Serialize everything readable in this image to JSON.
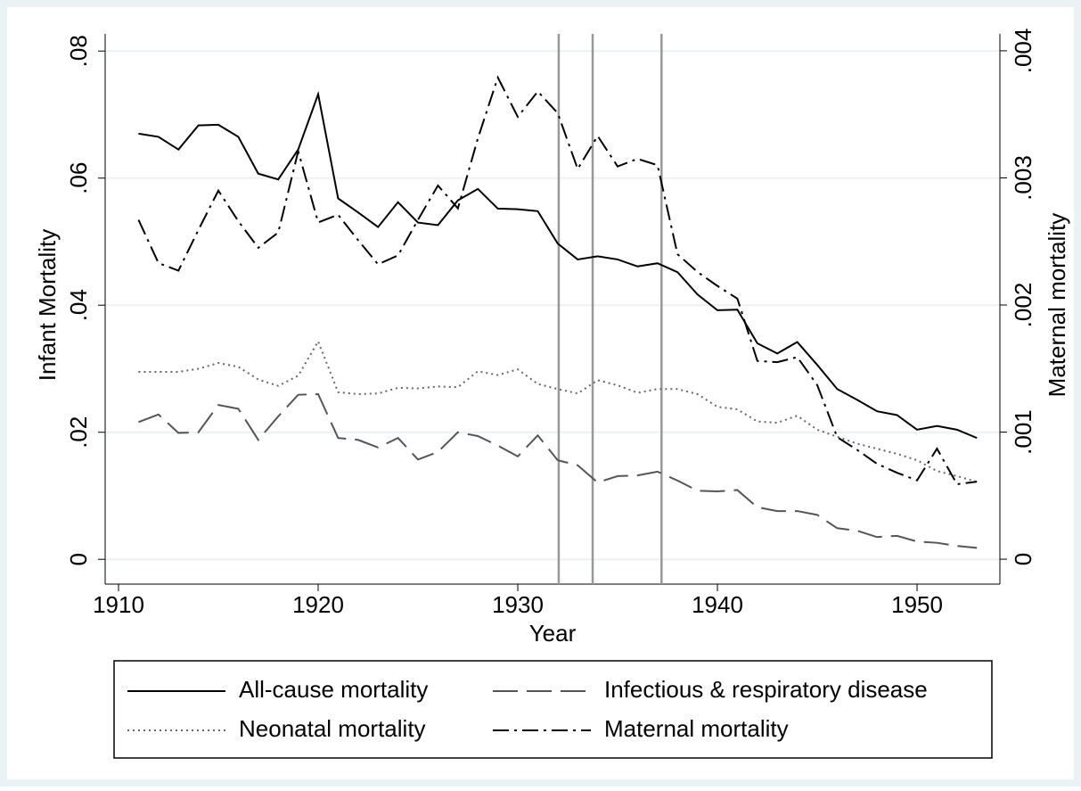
{
  "chart_data": {
    "type": "line",
    "xlabel": "Year",
    "ylabel": "Infant Mortality",
    "y2label": "Maternal mortality",
    "x": [
      1911,
      1912,
      1913,
      1914,
      1915,
      1916,
      1917,
      1918,
      1919,
      1920,
      1921,
      1922,
      1923,
      1924,
      1925,
      1926,
      1927,
      1928,
      1929,
      1930,
      1931,
      1932,
      1933,
      1934,
      1935,
      1936,
      1937,
      1938,
      1939,
      1940,
      1941,
      1942,
      1943,
      1944,
      1945,
      1946,
      1947,
      1948,
      1949,
      1950,
      1951,
      1952,
      1953
    ],
    "series": [
      {
        "name": "All-cause mortality",
        "color": "#000000",
        "dash": "none",
        "values": [
          0.067,
          0.0665,
          0.0645,
          0.0683,
          0.0684,
          0.0665,
          0.0607,
          0.0598,
          0.0645,
          0.0732,
          0.0568,
          0.0546,
          0.0523,
          0.0562,
          0.053,
          0.0526,
          0.0565,
          0.0583,
          0.0552,
          0.0551,
          0.0548,
          0.0497,
          0.0472,
          0.0477,
          0.0472,
          0.0461,
          0.0466,
          0.0452,
          0.0417,
          0.0392,
          0.0393,
          0.034,
          0.0324,
          0.0342,
          0.0306,
          0.0268,
          0.0251,
          0.0233,
          0.0227,
          0.0204,
          0.021,
          0.0204,
          0.0191
        ]
      },
      {
        "name": "Infectious & respiratory disease",
        "color": "#555555",
        "dash": "28 10",
        "values": [
          0.0216,
          0.0228,
          0.0199,
          0.02,
          0.0243,
          0.0237,
          0.0188,
          0.0225,
          0.0259,
          0.026,
          0.0191,
          0.0188,
          0.0176,
          0.0191,
          0.0157,
          0.0169,
          0.02,
          0.0194,
          0.0179,
          0.0162,
          0.0195,
          0.0156,
          0.0148,
          0.0121,
          0.0131,
          0.0132,
          0.0138,
          0.0124,
          0.0108,
          0.0107,
          0.0109,
          0.0082,
          0.0076,
          0.0076,
          0.007,
          0.0049,
          0.0045,
          0.0035,
          0.0037,
          0.0028,
          0.0026,
          0.0021,
          0.0018
        ]
      },
      {
        "name": "Neonatal mortality",
        "color": "#666666",
        "dash": "2 4",
        "values": [
          0.0295,
          0.0295,
          0.0295,
          0.03,
          0.0309,
          0.0303,
          0.0283,
          0.0273,
          0.0289,
          0.0343,
          0.0263,
          0.026,
          0.0261,
          0.027,
          0.0269,
          0.0272,
          0.0271,
          0.0296,
          0.029,
          0.0299,
          0.0276,
          0.0268,
          0.0261,
          0.0282,
          0.0274,
          0.0262,
          0.0268,
          0.0268,
          0.026,
          0.024,
          0.0236,
          0.0217,
          0.0215,
          0.0226,
          0.0204,
          0.0193,
          0.0182,
          0.0174,
          0.0166,
          0.0156,
          0.0139,
          0.0131,
          0.0122
        ]
      },
      {
        "name": "Maternal mortality",
        "color": "#000000",
        "dash": "18 6 3 6",
        "axis": "y2",
        "values": [
          0.00267,
          0.00233,
          0.00227,
          0.00259,
          0.0029,
          0.00266,
          0.00245,
          0.00257,
          0.00321,
          0.00265,
          0.00271,
          0.00251,
          0.00232,
          0.00239,
          0.00267,
          0.00294,
          0.00276,
          0.00331,
          0.00379,
          0.00348,
          0.00368,
          0.00351,
          0.00307,
          0.00333,
          0.00309,
          0.00315,
          0.0031,
          0.0024,
          0.00226,
          0.00215,
          0.00205,
          0.00156,
          0.00155,
          0.00159,
          0.00137,
          0.00096,
          0.00086,
          0.00075,
          0.00068,
          0.00062,
          0.00087,
          0.00059,
          0.00061
        ]
      }
    ],
    "xlim": [
      1909.33,
      1954.15
    ],
    "xticks": [
      1910,
      1920,
      1930,
      1940,
      1950
    ],
    "ylim": [
      -0.0039,
      0.0827
    ],
    "yticks": [
      0,
      {
        "value": 0.02,
        "label": ".02"
      },
      {
        "value": 0.04,
        "label": ".04"
      },
      {
        "value": 0.06,
        "label": ".06"
      },
      {
        "value": 0.08,
        "label": ".08"
      }
    ],
    "y2lim": [
      -0.000196,
      0.004133
    ],
    "y2ticks": [
      0,
      {
        "value": 0.001,
        "label": ".001"
      },
      {
        "value": 0.002,
        "label": ".002"
      },
      {
        "value": 0.003,
        "label": ".003"
      },
      {
        "value": 0.004,
        "label": ".004"
      }
    ],
    "vlines": [
      1932.05,
      1933.75,
      1937.2
    ],
    "vline_color": "#999999",
    "grid": true
  }
}
